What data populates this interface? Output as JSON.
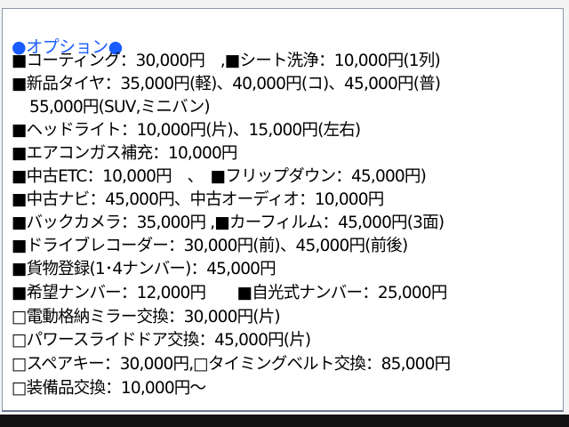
{
  "title": "●オプション●",
  "lines": [
    "■コーティング：30,000円　,■シート洗浄：10,000円(1列)",
    "■新品タイヤ：35,000円(軽)、40,000円(コ)、45,000円(普)",
    "55,000円(SUV,ミニバン)",
    "■ヘッドライト：10,000円(片)、15,000円(左右)",
    "■エアコンガス補充：10,000円",
    "■中古ETC：10,000円　、　■フリップダウン：45,000円)",
    "■中古ナビ：45,000円、中古オーディオ：10,000円",
    "■バックカメラ：35,000円 ,■カーフィルム：45,000円(3面)",
    "■ドライブレコーダー：30,000円(前)、45,000円(前後)",
    "■貨物登録(1･4ナンバー)：45,000円",
    "■希望ナンバー：12,000円　　■自光式ナンバー：25,000円",
    "□電動格納ミラー交換：30,000円(片)",
    "□パワースライドドア交換：45,000円(片)",
    "□スペアキー：30,000円,□タイミングベルト交換：85,000円",
    "□装備品交換：10,000円～"
  ],
  "colors": {
    "title": "#1a5cff",
    "text": "#000000",
    "border": "#8a96a8"
  }
}
